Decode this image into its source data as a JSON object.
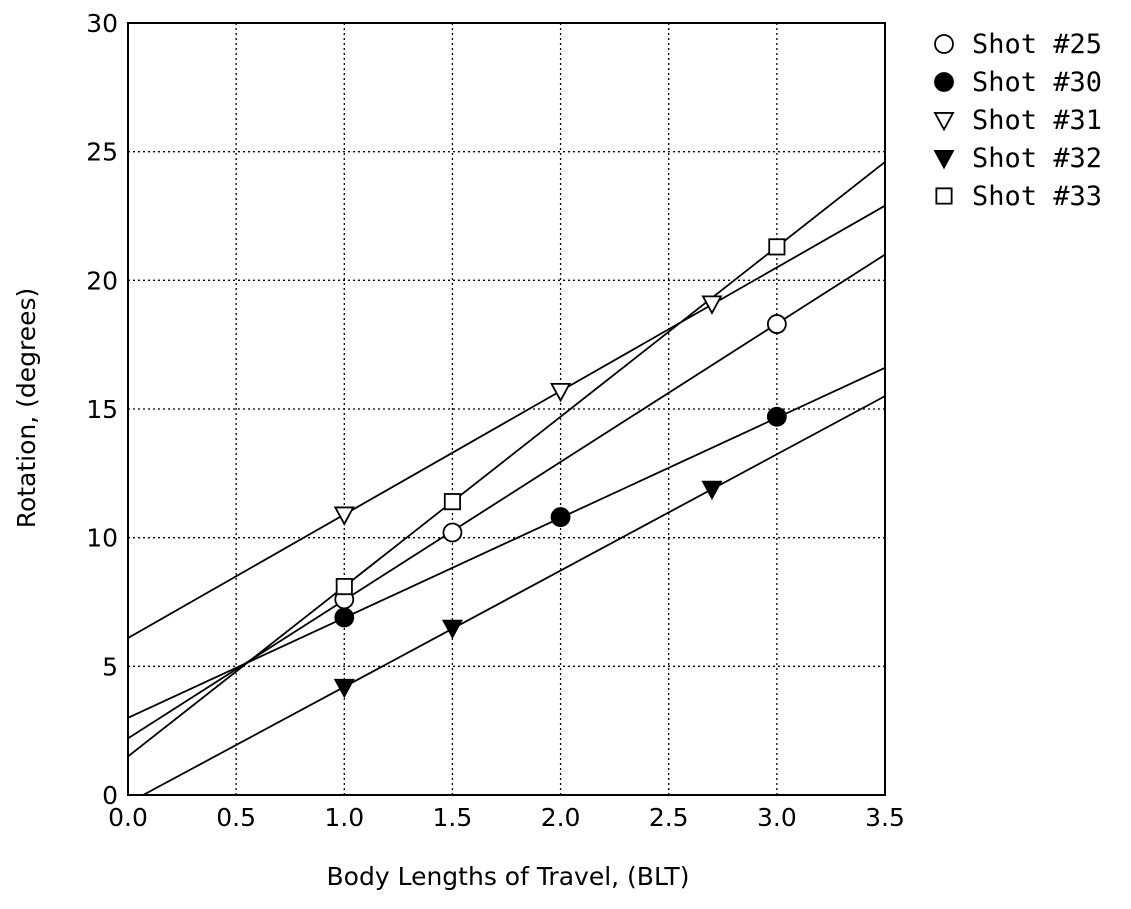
{
  "colors": {
    "ink": "#000000",
    "background": "#ffffff"
  },
  "chart_data": {
    "type": "scatter",
    "title": "",
    "xlabel": "Body Lengths of Travel, (BLT)",
    "ylabel": "Rotation, (degrees)",
    "xlim": [
      0.0,
      3.5
    ],
    "ylim": [
      0,
      30
    ],
    "x_ticks": [
      0.0,
      0.5,
      1.0,
      1.5,
      2.0,
      2.5,
      3.0,
      3.5
    ],
    "x_tick_labels": [
      "0.0",
      "0.5",
      "1.0",
      "1.5",
      "2.0",
      "2.5",
      "3.0",
      "3.5"
    ],
    "y_ticks": [
      0,
      5,
      10,
      15,
      20,
      25,
      30
    ],
    "y_tick_labels": [
      "0",
      "5",
      "10",
      "15",
      "20",
      "25",
      "30"
    ],
    "grid": true,
    "grid_style": "dotted",
    "legend_position": "outside-top-right",
    "series": [
      {
        "name": "Shot #25",
        "marker": "circle-open",
        "x": [
          1.0,
          1.5,
          3.0
        ],
        "y": [
          7.6,
          10.2,
          18.3
        ],
        "fit_line": {
          "x": [
            0.0,
            3.5
          ],
          "y": [
            2.2,
            21.0
          ]
        }
      },
      {
        "name": "Shot #30",
        "marker": "circle-filled",
        "x": [
          1.0,
          2.0,
          3.0
        ],
        "y": [
          6.9,
          10.8,
          14.7
        ],
        "fit_line": {
          "x": [
            0.0,
            3.5
          ],
          "y": [
            3.0,
            16.6
          ]
        }
      },
      {
        "name": "Shot #31",
        "marker": "triangle-down-open",
        "x": [
          1.0,
          2.0,
          2.7
        ],
        "y": [
          10.9,
          15.7,
          19.1
        ],
        "fit_line": {
          "x": [
            0.0,
            3.5
          ],
          "y": [
            6.1,
            22.9
          ]
        }
      },
      {
        "name": "Shot #32",
        "marker": "triangle-down-filled",
        "x": [
          1.0,
          1.5,
          2.7
        ],
        "y": [
          4.2,
          6.5,
          11.9
        ],
        "fit_line": {
          "x": [
            0.07,
            3.5
          ],
          "y": [
            0.0,
            15.5
          ]
        }
      },
      {
        "name": "Shot #33",
        "marker": "square-open",
        "x": [
          1.0,
          1.5,
          3.0
        ],
        "y": [
          8.1,
          11.4,
          21.3
        ],
        "fit_line": {
          "x": [
            0.0,
            3.5
          ],
          "y": [
            1.5,
            24.6
          ]
        }
      }
    ]
  }
}
